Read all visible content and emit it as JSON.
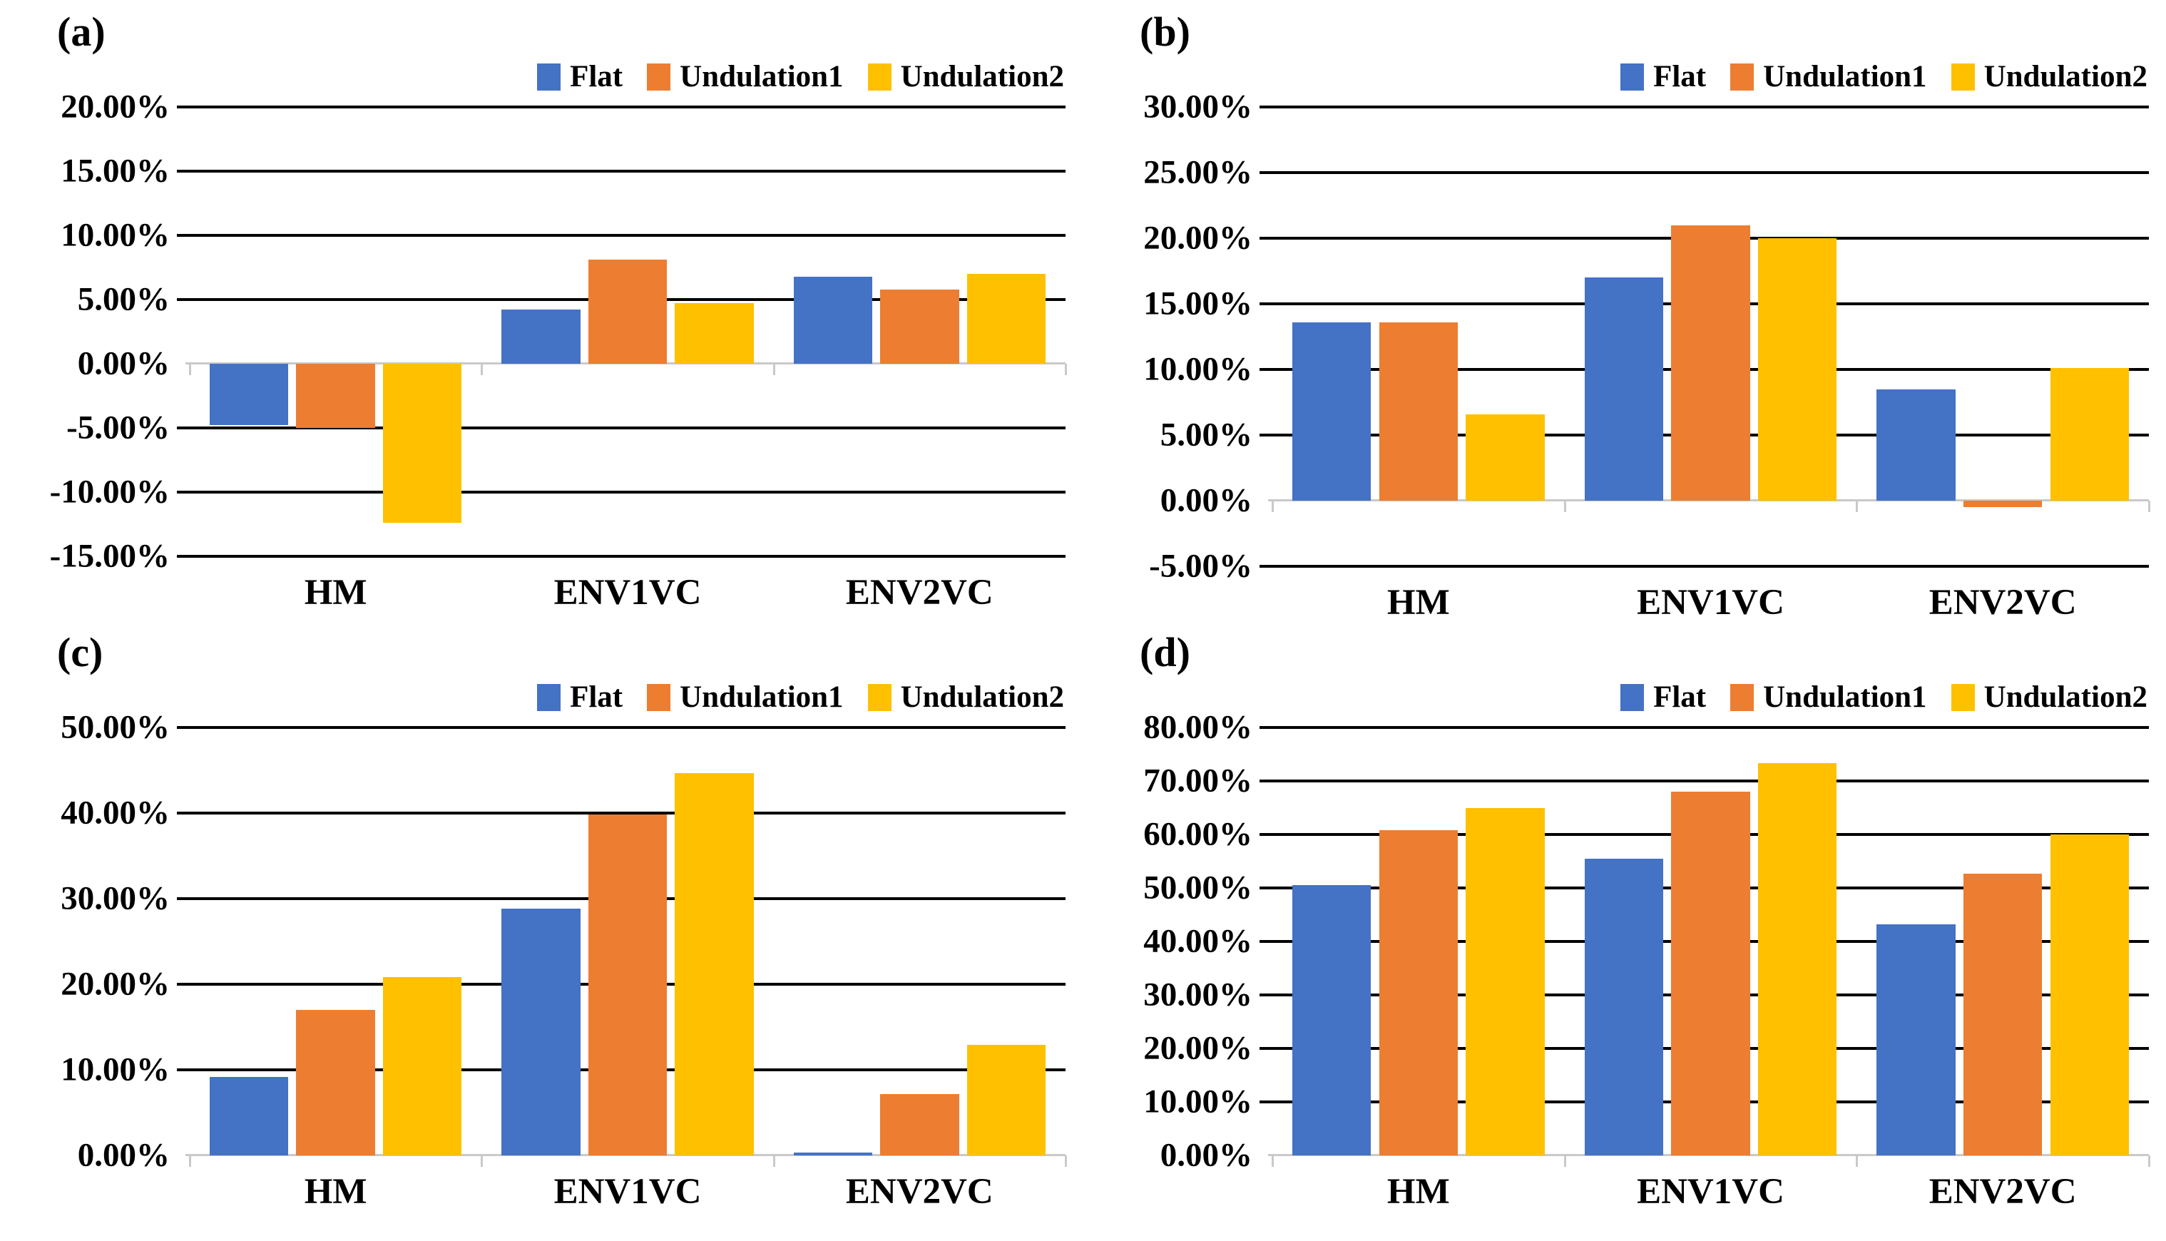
{
  "figure": {
    "series": [
      {
        "name": "Flat",
        "color": "#4472C4"
      },
      {
        "name": "Undulation1",
        "color": "#ED7D31"
      },
      {
        "name": "Undulation2",
        "color": "#FFC000"
      }
    ],
    "gridline_color": "#000000",
    "zero_axis_color": "#c9c9c9",
    "categories": [
      "HM",
      "ENV1VC",
      "ENV2VC"
    ]
  },
  "chart_data": [
    {
      "type": "bar",
      "panel_label": "(a)",
      "title": "",
      "xlabel": "",
      "ylabel": "",
      "categories": [
        "HM",
        "ENV1VC",
        "ENV2VC"
      ],
      "series": [
        {
          "name": "Flat",
          "values": [
            -4.8,
            4.2,
            6.8
          ]
        },
        {
          "name": "Undulation1",
          "values": [
            -5.0,
            8.1,
            5.8
          ]
        },
        {
          "name": "Undulation2",
          "values": [
            -12.4,
            4.7,
            7.0
          ]
        }
      ],
      "y_min": -15,
      "y_max": 20,
      "y_step": 5,
      "y_tick_labels": [
        "20.00%",
        "15.00%",
        "10.00%",
        "5.00%",
        "0.00%",
        "-5.00%",
        "-10.00%",
        "-15.00%"
      ],
      "legend": [
        "Flat",
        "Undulation1",
        "Undulation2"
      ],
      "legend_position": "top-right",
      "grid": true
    },
    {
      "type": "bar",
      "panel_label": "(b)",
      "title": "",
      "xlabel": "",
      "ylabel": "",
      "categories": [
        "HM",
        "ENV1VC",
        "ENV2VC"
      ],
      "series": [
        {
          "name": "Flat",
          "values": [
            13.6,
            17.0,
            8.5
          ]
        },
        {
          "name": "Undulation1",
          "values": [
            13.6,
            21.0,
            -0.5
          ]
        },
        {
          "name": "Undulation2",
          "values": [
            6.6,
            20.0,
            10.1
          ]
        }
      ],
      "y_min": -5,
      "y_max": 30,
      "y_step": 5,
      "y_tick_labels": [
        "30.00%",
        "25.00%",
        "20.00%",
        "15.00%",
        "10.00%",
        "5.00%",
        "0.00%",
        "-5.00%"
      ],
      "legend": [
        "Flat",
        "Undulation1",
        "Undulation2"
      ],
      "legend_position": "top-right",
      "grid": true
    },
    {
      "type": "bar",
      "panel_label": "(c)",
      "title": "",
      "xlabel": "",
      "ylabel": "",
      "categories": [
        "HM",
        "ENV1VC",
        "ENV2VC"
      ],
      "series": [
        {
          "name": "Flat",
          "values": [
            9.2,
            28.8,
            0.3
          ]
        },
        {
          "name": "Undulation1",
          "values": [
            17.0,
            39.8,
            7.2
          ]
        },
        {
          "name": "Undulation2",
          "values": [
            20.8,
            44.7,
            12.9
          ]
        }
      ],
      "y_min": 0,
      "y_max": 50,
      "y_step": 10,
      "y_tick_labels": [
        "50.00%",
        "40.00%",
        "30.00%",
        "20.00%",
        "10.00%",
        "0.00%"
      ],
      "legend": [
        "Flat",
        "Undulation1",
        "Undulation2"
      ],
      "legend_position": "top-right",
      "grid": true
    },
    {
      "type": "bar",
      "panel_label": "(d)",
      "title": "",
      "xlabel": "",
      "ylabel": "",
      "categories": [
        "HM",
        "ENV1VC",
        "ENV2VC"
      ],
      "series": [
        {
          "name": "Flat",
          "values": [
            50.5,
            55.5,
            43.2
          ]
        },
        {
          "name": "Undulation1",
          "values": [
            60.8,
            68.0,
            52.7
          ]
        },
        {
          "name": "Undulation2",
          "values": [
            64.9,
            73.4,
            60.0
          ]
        }
      ],
      "y_min": 0,
      "y_max": 80,
      "y_step": 10,
      "y_tick_labels": [
        "80.00%",
        "70.00%",
        "60.00%",
        "50.00%",
        "40.00%",
        "30.00%",
        "20.00%",
        "10.00%",
        "0.00%"
      ],
      "legend": [
        "Flat",
        "Undulation1",
        "Undulation2"
      ],
      "legend_position": "top-right",
      "grid": true
    }
  ]
}
